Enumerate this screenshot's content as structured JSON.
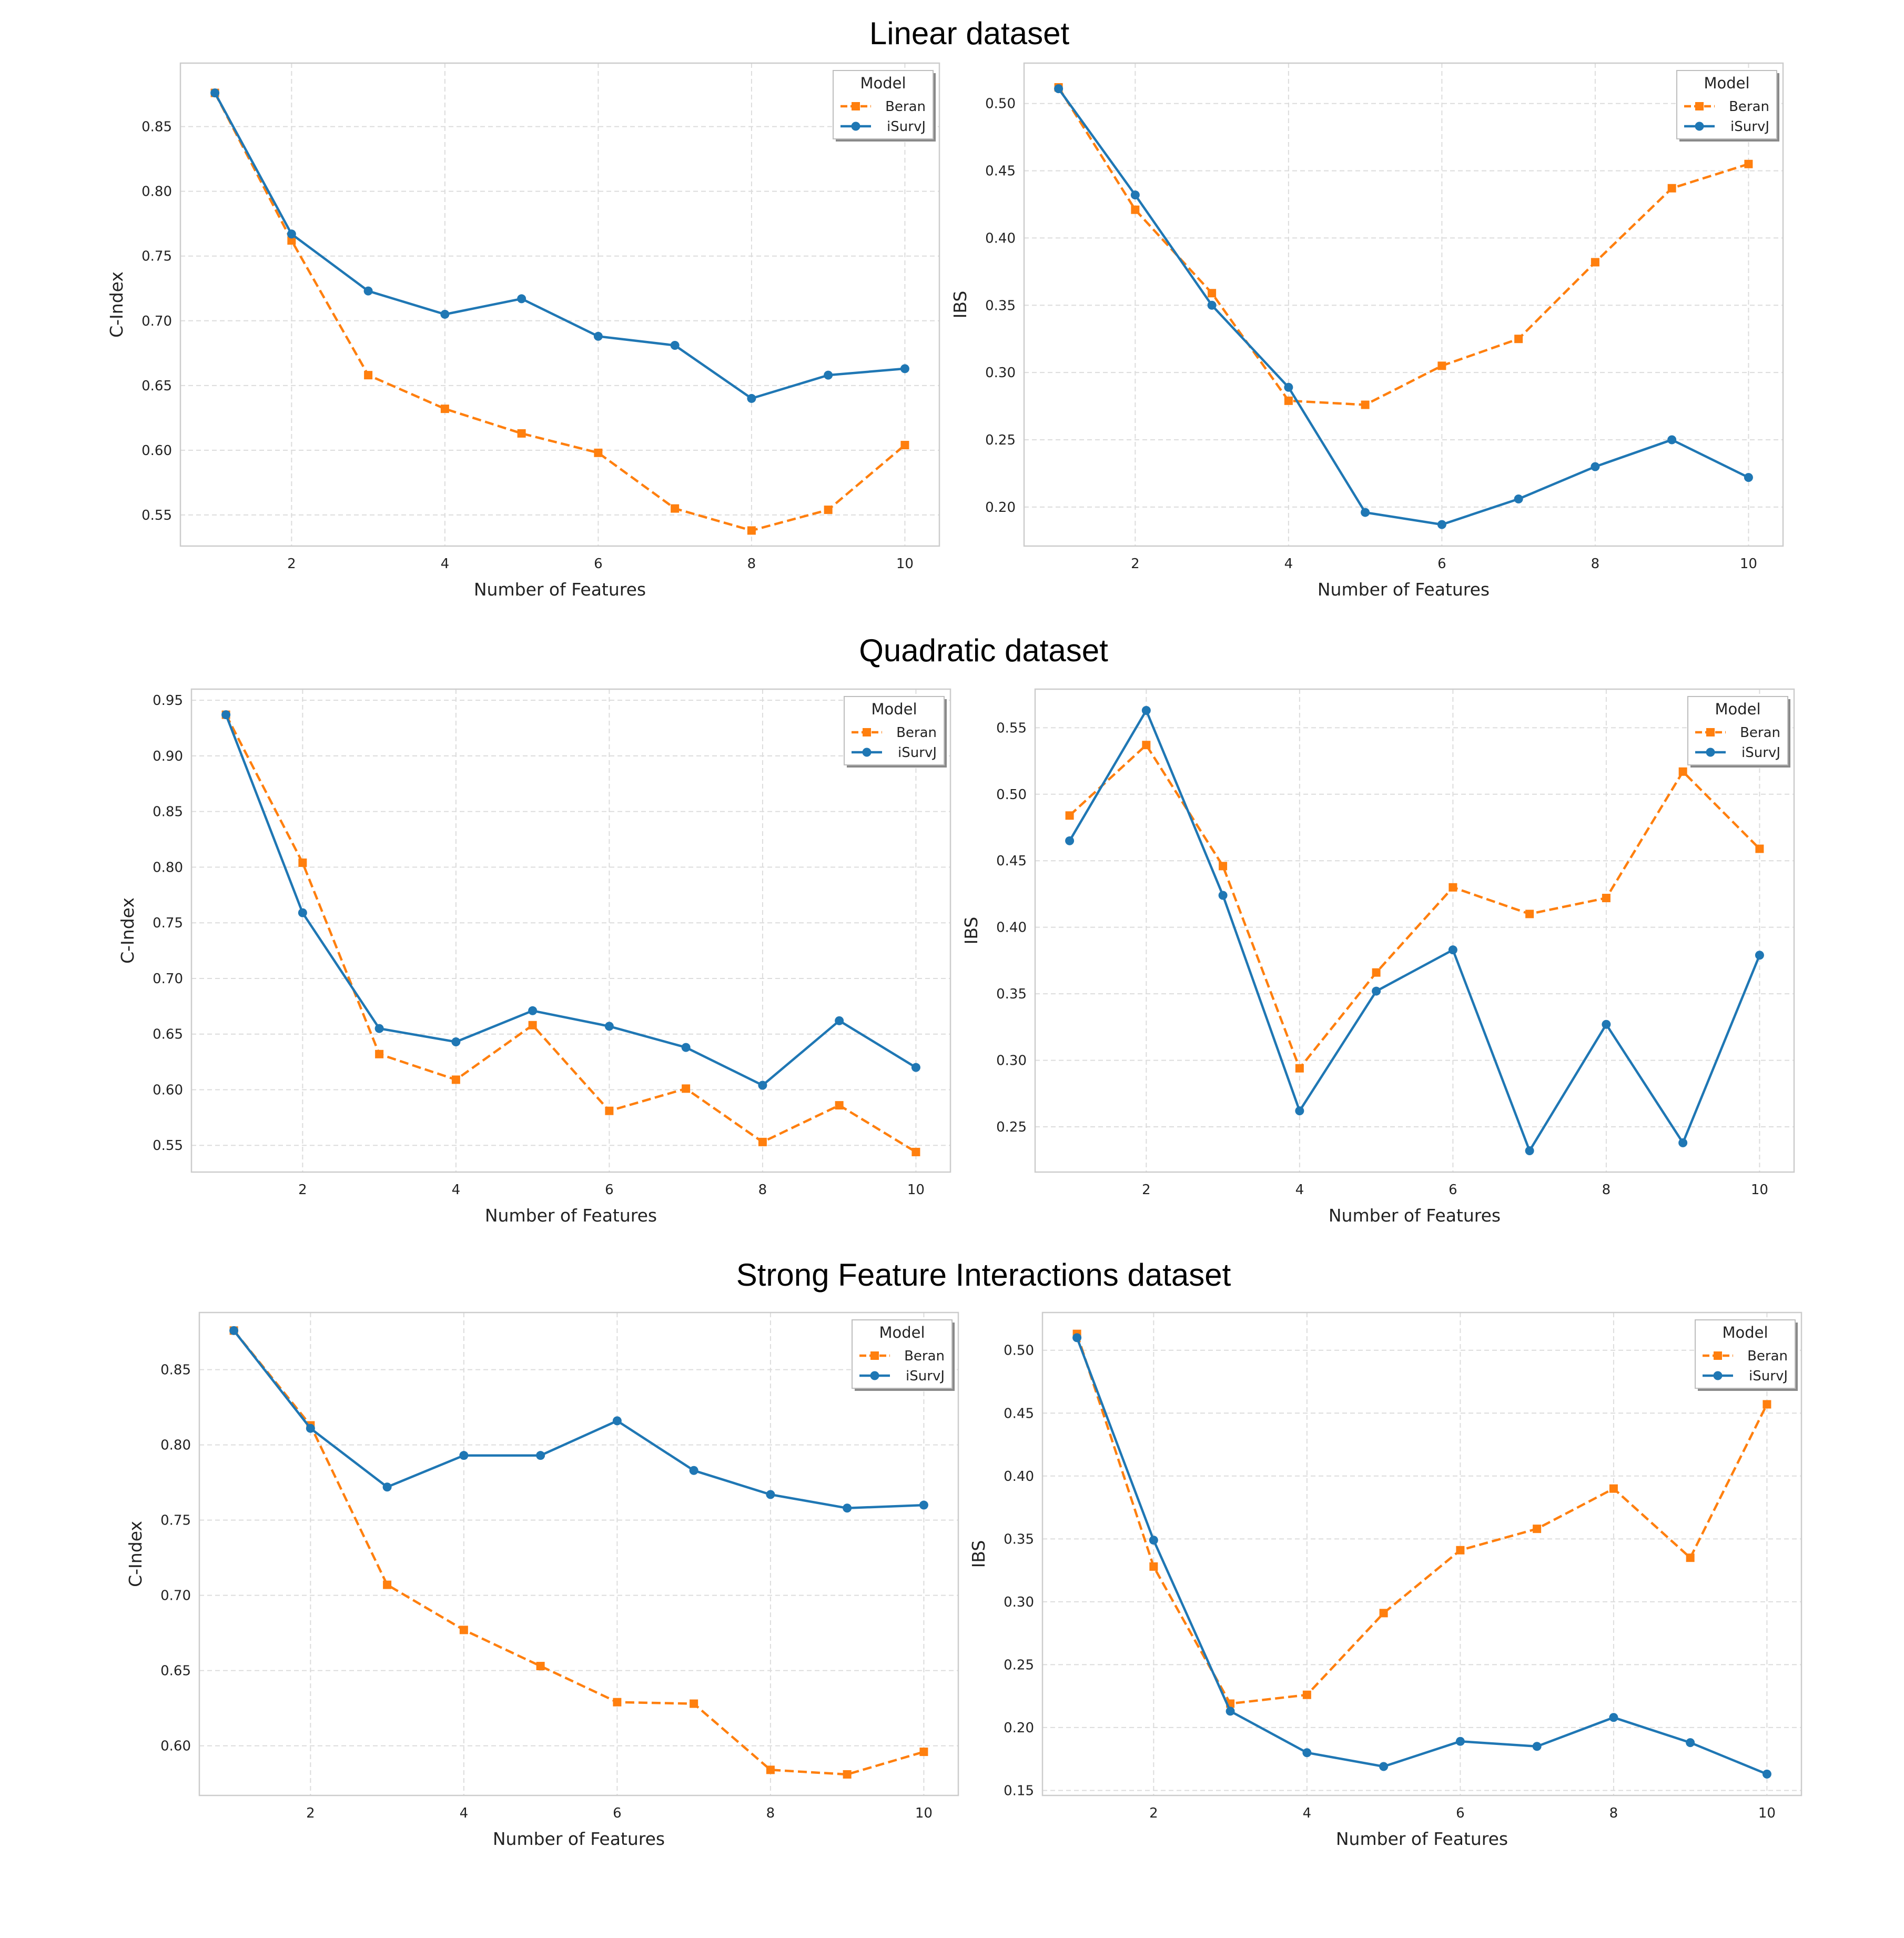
{
  "figure": {
    "group_titles": [
      "Linear dataset",
      "Quadratic dataset",
      "Strong Feature Interactions dataset"
    ]
  },
  "colors": {
    "beran": "#ff7f0e",
    "isurvj": "#1f77b4",
    "grid": "#dcdcdc",
    "spine": "#cccccc"
  },
  "chart_data": [
    {
      "type": "line",
      "group_title": "Linear dataset",
      "xlabel": "Number of Features",
      "ylabel": "C-Index",
      "x": [
        1,
        2,
        3,
        4,
        5,
        6,
        7,
        8,
        9,
        10
      ],
      "xticks": [
        2,
        4,
        6,
        8,
        10
      ],
      "xlim": [
        0.55,
        10.45
      ],
      "yticks": [
        0.55,
        0.6,
        0.65,
        0.7,
        0.75,
        0.8,
        0.85
      ],
      "ylim": [
        0.526,
        0.899
      ],
      "grid": true,
      "legend": {
        "title": "Model",
        "placement": "top-right"
      },
      "series": [
        {
          "name": "Beran",
          "style": "dashed-square",
          "values": [
            0.876,
            0.762,
            0.658,
            0.632,
            0.613,
            0.598,
            0.555,
            0.538,
            0.554,
            0.604
          ]
        },
        {
          "name": "iSurvJ",
          "style": "solid-circle",
          "values": [
            0.876,
            0.767,
            0.723,
            0.705,
            0.717,
            0.688,
            0.681,
            0.64,
            0.658,
            0.663
          ]
        }
      ]
    },
    {
      "type": "line",
      "group_title": "Linear dataset",
      "xlabel": "Number of Features",
      "ylabel": "IBS",
      "x": [
        1,
        2,
        3,
        4,
        5,
        6,
        7,
        8,
        9,
        10
      ],
      "xticks": [
        2,
        4,
        6,
        8,
        10
      ],
      "xlim": [
        0.55,
        10.45
      ],
      "yticks": [
        0.2,
        0.25,
        0.3,
        0.35,
        0.4,
        0.45,
        0.5
      ],
      "ylim": [
        0.171,
        0.53
      ],
      "grid": true,
      "legend": {
        "title": "Model",
        "placement": "top-right"
      },
      "series": [
        {
          "name": "Beran",
          "style": "dashed-square",
          "values": [
            0.512,
            0.421,
            0.359,
            0.279,
            0.276,
            0.305,
            0.325,
            0.382,
            0.437,
            0.455
          ]
        },
        {
          "name": "iSurvJ",
          "style": "solid-circle",
          "values": [
            0.511,
            0.432,
            0.35,
            0.289,
            0.196,
            0.187,
            0.206,
            0.23,
            0.25,
            0.222
          ]
        }
      ]
    },
    {
      "type": "line",
      "group_title": "Quadratic dataset",
      "xlabel": "Number of Features",
      "ylabel": "C-Index",
      "x": [
        1,
        2,
        3,
        4,
        5,
        6,
        7,
        8,
        9,
        10
      ],
      "xticks": [
        2,
        4,
        6,
        8,
        10
      ],
      "xlim": [
        0.55,
        10.45
      ],
      "yticks": [
        0.55,
        0.6,
        0.65,
        0.7,
        0.75,
        0.8,
        0.85,
        0.9,
        0.95
      ],
      "ylim": [
        0.526,
        0.96
      ],
      "grid": true,
      "legend": {
        "title": "Model",
        "placement": "top-right"
      },
      "series": [
        {
          "name": "Beran",
          "style": "dashed-square",
          "values": [
            0.937,
            0.804,
            0.632,
            0.609,
            0.658,
            0.581,
            0.601,
            0.553,
            0.586,
            0.544
          ]
        },
        {
          "name": "iSurvJ",
          "style": "solid-circle",
          "values": [
            0.937,
            0.759,
            0.655,
            0.643,
            0.671,
            0.657,
            0.638,
            0.604,
            0.662,
            0.62
          ]
        }
      ]
    },
    {
      "type": "line",
      "group_title": "Quadratic dataset",
      "xlabel": "Number of Features",
      "ylabel": "IBS",
      "x": [
        1,
        2,
        3,
        4,
        5,
        6,
        7,
        8,
        9,
        10
      ],
      "xticks": [
        2,
        4,
        6,
        8,
        10
      ],
      "xlim": [
        0.55,
        10.45
      ],
      "yticks": [
        0.25,
        0.3,
        0.35,
        0.4,
        0.45,
        0.5,
        0.55
      ],
      "ylim": [
        0.216,
        0.579
      ],
      "grid": true,
      "legend": {
        "title": "Model",
        "placement": "top-right"
      },
      "series": [
        {
          "name": "Beran",
          "style": "dashed-square",
          "values": [
            0.484,
            0.537,
            0.446,
            0.294,
            0.366,
            0.43,
            0.41,
            0.422,
            0.517,
            0.459
          ]
        },
        {
          "name": "iSurvJ",
          "style": "solid-circle",
          "values": [
            0.465,
            0.563,
            0.424,
            0.262,
            0.352,
            0.383,
            0.232,
            0.327,
            0.238,
            0.379
          ]
        }
      ]
    },
    {
      "type": "line",
      "group_title": "Strong Feature Interactions dataset",
      "xlabel": "Number of Features",
      "ylabel": "C-Index",
      "x": [
        1,
        2,
        3,
        4,
        5,
        6,
        7,
        8,
        9,
        10
      ],
      "xticks": [
        2,
        4,
        6,
        8,
        10
      ],
      "xlim": [
        0.55,
        10.45
      ],
      "yticks": [
        0.6,
        0.65,
        0.7,
        0.75,
        0.8,
        0.85
      ],
      "ylim": [
        0.567,
        0.888
      ],
      "grid": true,
      "legend": {
        "title": "Model",
        "placement": "top-right"
      },
      "series": [
        {
          "name": "Beran",
          "style": "dashed-square",
          "values": [
            0.876,
            0.813,
            0.707,
            0.677,
            0.653,
            0.629,
            0.628,
            0.584,
            0.581,
            0.596
          ]
        },
        {
          "name": "iSurvJ",
          "style": "solid-circle",
          "values": [
            0.876,
            0.811,
            0.772,
            0.793,
            0.793,
            0.816,
            0.783,
            0.767,
            0.758,
            0.76
          ]
        }
      ]
    },
    {
      "type": "line",
      "group_title": "Strong Feature Interactions dataset",
      "xlabel": "Number of Features",
      "ylabel": "IBS",
      "x": [
        1,
        2,
        3,
        4,
        5,
        6,
        7,
        8,
        9,
        10
      ],
      "xticks": [
        2,
        4,
        6,
        8,
        10
      ],
      "xlim": [
        0.55,
        10.45
      ],
      "yticks": [
        0.15,
        0.2,
        0.25,
        0.3,
        0.35,
        0.4,
        0.45,
        0.5
      ],
      "ylim": [
        0.146,
        0.53
      ],
      "grid": true,
      "legend": {
        "title": "Model",
        "placement": "top-right"
      },
      "series": [
        {
          "name": "Beran",
          "style": "dashed-square",
          "values": [
            0.513,
            0.328,
            0.219,
            0.226,
            0.291,
            0.341,
            0.358,
            0.39,
            0.335,
            0.457
          ]
        },
        {
          "name": "iSurvJ",
          "style": "solid-circle",
          "values": [
            0.51,
            0.349,
            0.213,
            0.18,
            0.169,
            0.189,
            0.185,
            0.208,
            0.188,
            0.163
          ]
        }
      ]
    }
  ]
}
